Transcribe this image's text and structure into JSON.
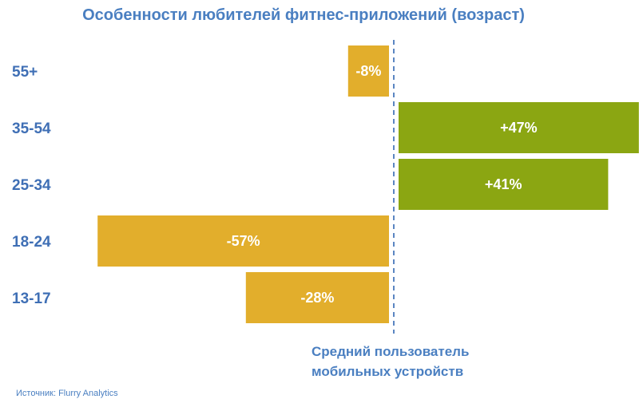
{
  "chart_data": {
    "type": "bar",
    "orientation": "horizontal",
    "title": "Особенности любителей фитнес-приложений (возраст)",
    "categories": [
      "55+",
      "35-54",
      "25-34",
      "18-24",
      "13-17"
    ],
    "values": [
      -8,
      47,
      41,
      -57,
      -28
    ],
    "value_labels": [
      "-8%",
      "+47%",
      "+41%",
      "-57%",
      "-28%"
    ],
    "xlim": [
      -57,
      47
    ],
    "baseline_label": "Средний пользователь мобильных устройств",
    "colors": {
      "negative": "#e2ae2c",
      "positive": "#8ba612",
      "baseline": "#5b86c2",
      "text": "#4a7fc1"
    }
  },
  "source": "Источник: Flurry Analytics"
}
